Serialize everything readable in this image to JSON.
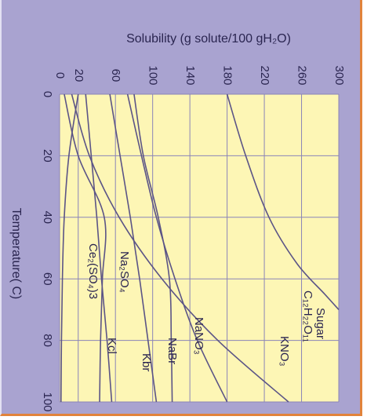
{
  "chart_data": {
    "type": "line",
    "xlabel": "Solubility (g solute/100 gH₂O)",
    "ylabel": "Temperature( C)",
    "xlim": [
      0,
      300
    ],
    "ylim": [
      0,
      100
    ],
    "x_ticks": [
      0,
      20,
      60,
      100,
      140,
      180,
      220,
      260,
      300
    ],
    "x_tick_labels": [
      "0",
      "20",
      "60",
      "100",
      "140",
      "180",
      "220",
      "260",
      "300"
    ],
    "y_ticks": [
      0,
      20,
      40,
      60,
      80,
      100
    ],
    "y_tick_labels": [
      "0",
      "20",
      "40",
      "60",
      "80",
      "100"
    ],
    "grid": true,
    "series": [
      {
        "name": "Sugar C12H22O11",
        "points": [
          [
            180,
            0
          ],
          [
            200,
            20
          ],
          [
            225,
            40
          ],
          [
            255,
            55
          ],
          [
            285,
            65
          ],
          [
            300,
            70
          ]
        ]
      },
      {
        "name": "KNO3",
        "points": [
          [
            13,
            0
          ],
          [
            32,
            20
          ],
          [
            64,
            40
          ],
          [
            110,
            60
          ],
          [
            170,
            80
          ],
          [
            246,
            100
          ]
        ]
      },
      {
        "name": "NaNO3",
        "points": [
          [
            73,
            0
          ],
          [
            88,
            20
          ],
          [
            104,
            40
          ],
          [
            124,
            60
          ],
          [
            148,
            80
          ],
          [
            180,
            100
          ]
        ]
      },
      {
        "name": "NaBr",
        "points": [
          [
            80,
            0
          ],
          [
            90,
            20
          ],
          [
            106,
            40
          ],
          [
            118,
            60
          ],
          [
            120,
            80
          ],
          [
            121,
            100
          ]
        ]
      },
      {
        "name": "Kbr",
        "points": [
          [
            54,
            0
          ],
          [
            65,
            20
          ],
          [
            76,
            40
          ],
          [
            86,
            60
          ],
          [
            95,
            80
          ],
          [
            104,
            100
          ]
        ]
      },
      {
        "name": "Kcl",
        "points": [
          [
            28,
            0
          ],
          [
            34,
            20
          ],
          [
            40,
            40
          ],
          [
            45,
            60
          ],
          [
            51,
            80
          ],
          [
            56,
            100
          ]
        ]
      },
      {
        "name": "Na2SO4",
        "points": [
          [
            5,
            0
          ],
          [
            20,
            20
          ],
          [
            48,
            40
          ],
          [
            46,
            60
          ],
          [
            44,
            80
          ],
          [
            43,
            100
          ]
        ]
      },
      {
        "name": "Ce2(SO4)3",
        "points": [
          [
            20,
            0
          ],
          [
            10,
            20
          ],
          [
            5,
            40
          ],
          [
            3,
            60
          ],
          [
            2,
            80
          ],
          [
            1.5,
            100
          ]
        ]
      }
    ]
  },
  "labels": {
    "sugar": "Sugar",
    "sugar_formula": "C₁₂H₂₂O₁₁",
    "kno3": "KNO₃",
    "nano3": "NaNO₃",
    "nabr": "NaBr",
    "kbr": "Kbr",
    "kcl": "Kcl",
    "na2so4": "Na₂SO₄",
    "ce2so43": "Ce₂(SO₄)3"
  },
  "colors": {
    "plot_bg": "#fdf6b5",
    "frame_bg": "#a9a3d0",
    "curve": "#5b5486",
    "grid": "#8a84b8"
  }
}
